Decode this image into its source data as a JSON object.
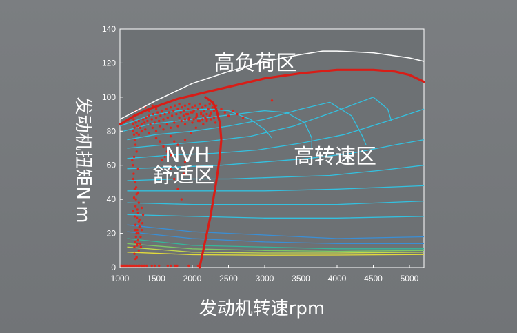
{
  "chart_data": {
    "type": "scatter",
    "xlabel": "发动机转速rpm",
    "ylabel": "发动机扭矩N·m",
    "xlim": [
      1000,
      5200
    ],
    "ylim": [
      0,
      140
    ],
    "x_ticks": [
      1000,
      1500,
      2000,
      2500,
      3000,
      3500,
      4000,
      4500,
      5000
    ],
    "y_ticks": [
      0,
      20,
      40,
      60,
      80,
      100,
      120,
      140
    ],
    "grid": false,
    "regions": [
      {
        "label": "高负荷区",
        "x": 2300,
        "y": 116
      },
      {
        "label": "NVH",
        "x": 1620,
        "y": 62
      },
      {
        "label": "舒适区",
        "x": 1450,
        "y": 50
      },
      {
        "label": "高转速区",
        "x": 3400,
        "y": 61
      }
    ],
    "max_torque_curve": {
      "x": [
        1000,
        1500,
        2000,
        2500,
        3000,
        3500,
        3800,
        4000,
        4500,
        5000,
        5200
      ],
      "y": [
        87,
        98,
        108,
        115,
        121,
        125,
        127,
        127,
        126,
        123,
        121
      ]
    },
    "boundary_curves": [
      {
        "x": [
          1000,
          1200,
          1400,
          1600,
          1800,
          2000,
          2200,
          2600,
          3000,
          3500,
          4000,
          4500,
          4800,
          5000,
          5200
        ],
        "y": [
          84,
          89,
          93,
          96,
          99,
          101,
          103,
          107,
          111,
          114,
          116,
          116,
          115,
          113,
          109
        ]
      },
      {
        "x": [
          2100,
          2150,
          2250,
          2330,
          2380,
          2400,
          2380,
          2330,
          2280,
          2180
        ],
        "y": [
          0,
          10,
          30,
          50,
          65,
          75,
          85,
          93,
          97,
          100
        ]
      }
    ],
    "contours": [
      {
        "color": "#33c1e0",
        "points": [
          [
            1000,
            83
          ],
          [
            1400,
            89
          ],
          [
            1800,
            92
          ],
          [
            2200,
            93
          ],
          [
            2500,
            92
          ],
          [
            2800,
            87
          ],
          [
            3000,
            81
          ],
          [
            3100,
            76
          ]
        ]
      },
      {
        "color": "#33c1e0",
        "points": [
          [
            1050,
            80
          ],
          [
            1400,
            84
          ],
          [
            1800,
            86
          ],
          [
            2200,
            88
          ],
          [
            2600,
            90
          ],
          [
            3000,
            92
          ],
          [
            3300,
            91
          ],
          [
            3550,
            85
          ],
          [
            3650,
            76
          ],
          [
            3650,
            70
          ]
        ]
      },
      {
        "color": "#33c1e0",
        "points": [
          [
            1100,
            75
          ],
          [
            1500,
            78
          ],
          [
            2000,
            80
          ],
          [
            2500,
            83
          ],
          [
            3000,
            87
          ],
          [
            3500,
            93
          ],
          [
            3900,
            97
          ],
          [
            4200,
            89
          ],
          [
            4350,
            77
          ],
          [
            4400,
            72
          ]
        ]
      },
      {
        "color": "#33c1e0",
        "points": [
          [
            1100,
            70
          ],
          [
            1600,
            72
          ],
          [
            2200,
            74
          ],
          [
            2800,
            77
          ],
          [
            3400,
            83
          ],
          [
            4000,
            92
          ],
          [
            4500,
            100
          ],
          [
            4700,
            93
          ],
          [
            4750,
            86
          ]
        ]
      },
      {
        "color": "#33c1e0",
        "points": [
          [
            1100,
            64
          ],
          [
            1700,
            66
          ],
          [
            2300,
            67
          ],
          [
            2900,
            69
          ],
          [
            3500,
            73
          ],
          [
            4100,
            78
          ],
          [
            4700,
            86
          ],
          [
            5200,
            93
          ]
        ]
      },
      {
        "color": "#33c1e0",
        "points": [
          [
            1100,
            58
          ],
          [
            1800,
            59
          ],
          [
            2400,
            60
          ],
          [
            3000,
            62
          ],
          [
            3600,
            64
          ],
          [
            4200,
            67
          ],
          [
            4800,
            72
          ],
          [
            5200,
            75
          ]
        ]
      },
      {
        "color": "#33c1e0",
        "points": [
          [
            1100,
            51
          ],
          [
            1800,
            52
          ],
          [
            2500,
            52
          ],
          [
            3200,
            53
          ],
          [
            3900,
            54
          ],
          [
            4600,
            57
          ],
          [
            5200,
            60
          ]
        ]
      },
      {
        "color": "#33c1e0",
        "points": [
          [
            1100,
            45
          ],
          [
            2000,
            45
          ],
          [
            3000,
            45
          ],
          [
            4000,
            46
          ],
          [
            5200,
            48
          ]
        ]
      },
      {
        "color": "#33c1e0",
        "points": [
          [
            1100,
            38
          ],
          [
            2000,
            37
          ],
          [
            3000,
            37
          ],
          [
            4000,
            37
          ],
          [
            5200,
            39
          ]
        ]
      },
      {
        "color": "#33c1e0",
        "points": [
          [
            1100,
            31
          ],
          [
            2000,
            30
          ],
          [
            3000,
            29
          ],
          [
            4000,
            29
          ],
          [
            5200,
            30
          ]
        ]
      },
      {
        "color": "#3a8fd6",
        "points": [
          [
            1100,
            25
          ],
          [
            2000,
            21
          ],
          [
            3000,
            19
          ],
          [
            4000,
            17
          ],
          [
            5200,
            18
          ]
        ]
      },
      {
        "color": "#3a8fd6",
        "points": [
          [
            1100,
            21
          ],
          [
            2000,
            17
          ],
          [
            3000,
            15
          ],
          [
            4000,
            14
          ],
          [
            5200,
            14
          ]
        ]
      },
      {
        "color": "#35b89a",
        "points": [
          [
            1100,
            17
          ],
          [
            2000,
            13
          ],
          [
            3000,
            12
          ],
          [
            4000,
            11
          ],
          [
            5200,
            11
          ]
        ]
      },
      {
        "color": "#7ec866",
        "points": [
          [
            1100,
            14
          ],
          [
            2000,
            11
          ],
          [
            3000,
            10
          ],
          [
            4000,
            9.5
          ],
          [
            5200,
            10
          ]
        ]
      },
      {
        "color": "#c6d84d",
        "points": [
          [
            1100,
            12
          ],
          [
            2000,
            9
          ],
          [
            3000,
            8.5
          ],
          [
            4000,
            8.5
          ],
          [
            5200,
            9
          ]
        ]
      },
      {
        "color": "#e3db3c",
        "points": [
          [
            1100,
            9
          ],
          [
            2000,
            7.5
          ],
          [
            3000,
            7.2
          ],
          [
            4000,
            7.3
          ],
          [
            5200,
            7.6
          ]
        ]
      }
    ],
    "scatter_points": [
      [
        1012,
        1
      ],
      [
        1025,
        1
      ],
      [
        1045,
        1
      ],
      [
        1060,
        1
      ],
      [
        1075,
        1
      ],
      [
        1095,
        1
      ],
      [
        1108,
        1
      ],
      [
        1130,
        1
      ],
      [
        1148,
        1
      ],
      [
        1165,
        1
      ],
      [
        1180,
        1
      ],
      [
        1205,
        1
      ],
      [
        1230,
        1
      ],
      [
        1255,
        1
      ],
      [
        1270,
        1
      ],
      [
        1300,
        1
      ],
      [
        1320,
        1
      ],
      [
        1340,
        1
      ],
      [
        1370,
        1
      ],
      [
        1440,
        1
      ],
      [
        1480,
        1
      ],
      [
        1540,
        1
      ],
      [
        1660,
        1
      ],
      [
        1700,
        1
      ],
      [
        1760,
        1
      ],
      [
        1790,
        1
      ],
      [
        1950,
        1
      ],
      [
        2080,
        1
      ],
      [
        1200,
        12
      ],
      [
        1210,
        15
      ],
      [
        1222,
        18
      ],
      [
        1230,
        20
      ],
      [
        1240,
        22
      ],
      [
        1250,
        16
      ],
      [
        1215,
        25
      ],
      [
        1235,
        29
      ],
      [
        1250,
        32
      ],
      [
        1260,
        27
      ],
      [
        1270,
        24
      ],
      [
        1285,
        18
      ],
      [
        1280,
        14
      ],
      [
        1290,
        12
      ],
      [
        1215,
        36
      ],
      [
        1220,
        40
      ],
      [
        1230,
        43
      ],
      [
        1205,
        46
      ],
      [
        1210,
        50
      ],
      [
        1190,
        55
      ],
      [
        1180,
        60
      ],
      [
        1170,
        63
      ],
      [
        1195,
        65
      ],
      [
        1230,
        68
      ],
      [
        1250,
        58
      ],
      [
        1260,
        38
      ],
      [
        1300,
        35
      ],
      [
        1320,
        31
      ],
      [
        1310,
        26
      ],
      [
        1200,
        8
      ],
      [
        1230,
        6
      ],
      [
        1260,
        10
      ],
      [
        1240,
        34
      ],
      [
        1225,
        47
      ],
      [
        1185,
        52
      ],
      [
        1195,
        41
      ],
      [
        1180,
        33
      ],
      [
        1205,
        30
      ],
      [
        1210,
        22
      ],
      [
        1240,
        14
      ],
      [
        1255,
        20
      ],
      [
        1270,
        28
      ],
      [
        1300,
        22
      ],
      [
        1215,
        5
      ],
      [
        1235,
        13
      ],
      [
        1250,
        44
      ],
      [
        1180,
        80
      ],
      [
        1200,
        82
      ],
      [
        1220,
        85
      ],
      [
        1240,
        83
      ],
      [
        1260,
        86
      ],
      [
        1280,
        82
      ],
      [
        1300,
        84
      ],
      [
        1320,
        87
      ],
      [
        1340,
        85
      ],
      [
        1360,
        88
      ],
      [
        1380,
        86
      ],
      [
        1400,
        89
      ],
      [
        1420,
        84
      ],
      [
        1440,
        87
      ],
      [
        1460,
        90
      ],
      [
        1480,
        85
      ],
      [
        1500,
        88
      ],
      [
        1520,
        91
      ],
      [
        1540,
        86
      ],
      [
        1560,
        89
      ],
      [
        1580,
        92
      ],
      [
        1600,
        87
      ],
      [
        1620,
        90
      ],
      [
        1640,
        93
      ],
      [
        1660,
        88
      ],
      [
        1680,
        91
      ],
      [
        1700,
        94
      ],
      [
        1720,
        89
      ],
      [
        1740,
        92
      ],
      [
        1760,
        95
      ],
      [
        1780,
        90
      ],
      [
        1800,
        93
      ],
      [
        1820,
        96
      ],
      [
        1840,
        91
      ],
      [
        1860,
        94
      ],
      [
        1880,
        92
      ],
      [
        1900,
        95
      ],
      [
        1920,
        90
      ],
      [
        1940,
        93
      ],
      [
        1960,
        96
      ],
      [
        1980,
        91
      ],
      [
        2000,
        94
      ],
      [
        2020,
        92
      ],
      [
        2040,
        95
      ],
      [
        2060,
        90
      ],
      [
        2080,
        93
      ],
      [
        2100,
        96
      ],
      [
        2120,
        91
      ],
      [
        2140,
        94
      ],
      [
        2160,
        92
      ],
      [
        2180,
        95
      ],
      [
        2200,
        90
      ],
      [
        2220,
        93
      ],
      [
        2240,
        96
      ],
      [
        2260,
        91
      ],
      [
        2280,
        94
      ],
      [
        2300,
        92
      ],
      [
        2330,
        95
      ],
      [
        2360,
        90
      ],
      [
        2400,
        93
      ],
      [
        2450,
        91
      ],
      [
        2500,
        89
      ],
      [
        2560,
        92
      ],
      [
        2620,
        90
      ],
      [
        2700,
        88
      ],
      [
        3100,
        98
      ],
      [
        1230,
        79
      ],
      [
        1260,
        78
      ],
      [
        1300,
        80
      ],
      [
        1350,
        81
      ],
      [
        1400,
        79
      ],
      [
        1450,
        82
      ],
      [
        1500,
        80
      ],
      [
        1550,
        83
      ],
      [
        1600,
        81
      ],
      [
        1650,
        84
      ],
      [
        1700,
        82
      ],
      [
        1750,
        85
      ],
      [
        1800,
        83
      ],
      [
        1850,
        86
      ],
      [
        1900,
        84
      ],
      [
        1950,
        87
      ],
      [
        2000,
        85
      ],
      [
        2050,
        88
      ],
      [
        2100,
        86
      ],
      [
        2150,
        89
      ],
      [
        2200,
        87
      ],
      [
        2250,
        90
      ],
      [
        2300,
        88
      ],
      [
        1700,
        77
      ],
      [
        1750,
        74
      ],
      [
        1800,
        72
      ],
      [
        1850,
        70
      ],
      [
        1900,
        75
      ],
      [
        1980,
        79
      ],
      [
        2050,
        82
      ],
      [
        2150,
        84
      ],
      [
        1650,
        68
      ],
      [
        1700,
        66
      ],
      [
        1600,
        71
      ],
      [
        1550,
        74
      ],
      [
        1500,
        76
      ],
      [
        1620,
        65
      ],
      [
        1580,
        63
      ],
      [
        1700,
        58
      ],
      [
        1750,
        52
      ],
      [
        1800,
        46
      ],
      [
        1850,
        40
      ],
      [
        1880,
        55
      ],
      [
        1900,
        62
      ],
      [
        1820,
        88
      ],
      [
        1880,
        89
      ],
      [
        1940,
        90
      ],
      [
        2000,
        91
      ],
      [
        2060,
        89
      ],
      [
        2120,
        90
      ],
      [
        2180,
        88
      ],
      [
        2240,
        89
      ],
      [
        1900,
        87
      ],
      [
        1960,
        88
      ],
      [
        2020,
        87
      ],
      [
        2080,
        86
      ],
      [
        2140,
        87
      ],
      [
        2200,
        86
      ],
      [
        2260,
        87
      ],
      [
        2320,
        85
      ],
      [
        1500,
        93
      ],
      [
        1450,
        95
      ],
      [
        1400,
        92
      ],
      [
        1350,
        94
      ],
      [
        1300,
        91
      ],
      [
        1280,
        93
      ],
      [
        1250,
        90
      ],
      [
        1220,
        92
      ],
      [
        1200,
        89
      ],
      [
        1190,
        87
      ],
      [
        1185,
        84
      ],
      [
        1195,
        78
      ],
      [
        1205,
        75
      ],
      [
        1215,
        72
      ]
    ]
  }
}
